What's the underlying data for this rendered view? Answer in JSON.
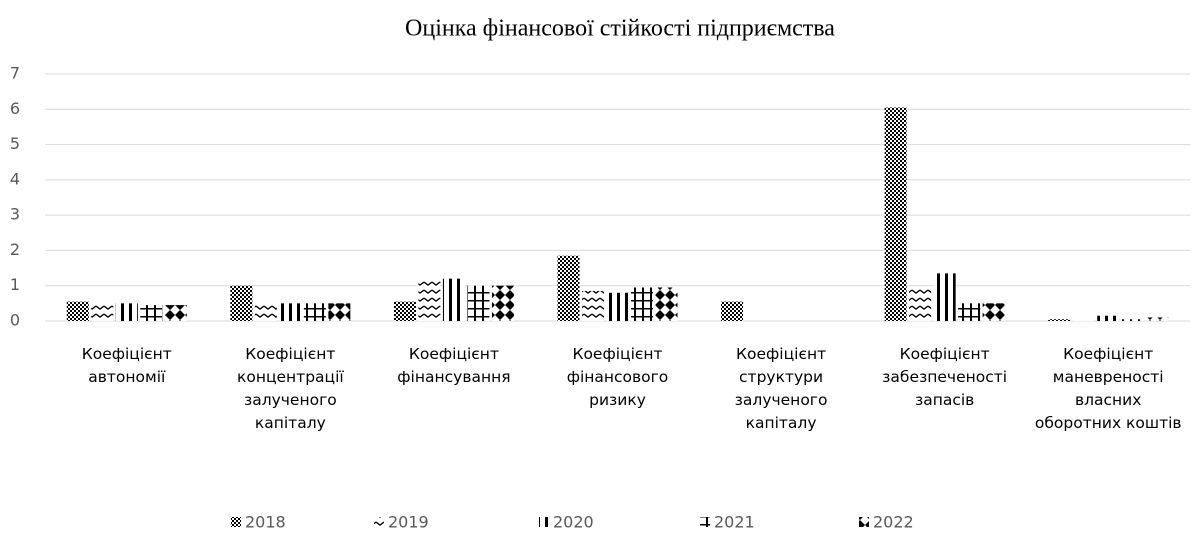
{
  "chart_data": {
    "type": "bar",
    "title": "Оцінка фінансової стійкості підприємства",
    "categories": [
      "Коефіцієнт автономії",
      "Коефіцієнт концентрації залученого капіталу",
      "Коефіцієнт фінансування",
      "Коефіцієнт фінансового ризику",
      "Коефіцієнт структури залученого капіталу",
      "Коефіцієнт забезпеченості запасів",
      "Коефіцієнт маневреності власних оборотних коштів"
    ],
    "series": [
      {
        "name": "2018",
        "color": "#000000",
        "values": [
          0.55,
          1.0,
          0.55,
          1.85,
          0.55,
          6.05,
          0.05
        ]
      },
      {
        "name": "2019",
        "color": "#000000",
        "values": [
          0.5,
          0.45,
          1.2,
          0.85,
          0,
          0.95,
          0.05
        ]
      },
      {
        "name": "2020",
        "color": "#000000",
        "values": [
          0.5,
          0.5,
          1.2,
          0.8,
          0,
          1.35,
          0.15
        ]
      },
      {
        "name": "2021",
        "color": "#000000",
        "values": [
          0.45,
          0.5,
          1.0,
          0.95,
          0,
          0.5,
          0.05
        ]
      },
      {
        "name": "2022",
        "color": "#000000",
        "values": [
          0.45,
          0.5,
          1.0,
          0.95,
          0,
          0.5,
          0.1
        ]
      }
    ],
    "ylim": [
      0,
      7
    ],
    "yticks": [
      0,
      1,
      2,
      3,
      4,
      5,
      6,
      7
    ],
    "grid": true,
    "legend": "bottom"
  }
}
